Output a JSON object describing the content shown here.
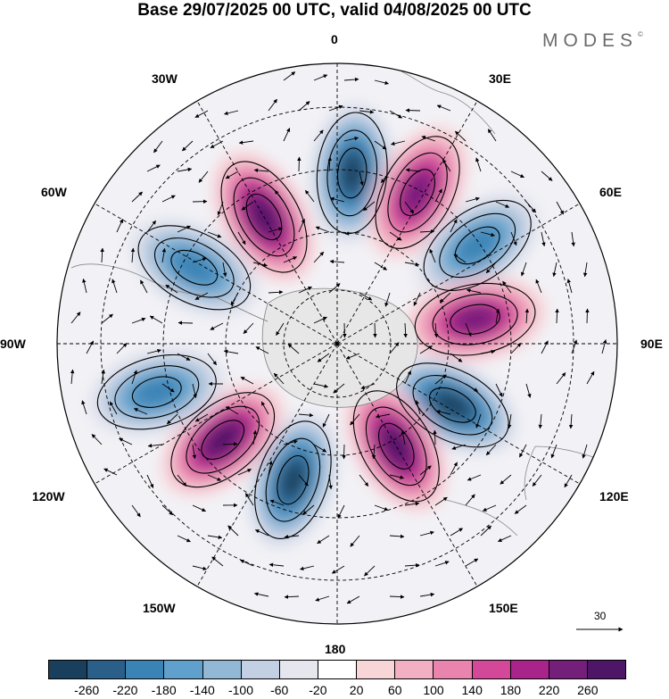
{
  "title": "Base 29/07/2025 00 UTC, valid 04/08/2025 00 UTC",
  "brand": "MODES",
  "brand_mark": "©",
  "longitude_labels": {
    "top": "0",
    "bottom": "180",
    "left": "90W",
    "right": "90E",
    "w30": "30W",
    "e30": "30E",
    "w60": "60W",
    "e60": "60E",
    "w120": "120W",
    "e120": "120E",
    "w150": "150W",
    "e150": "150E"
  },
  "legend": {
    "ticks": [
      "-260",
      "-220",
      "-180",
      "-140",
      "-100",
      "-60",
      "-20",
      "20",
      "60",
      "100",
      "140",
      "180",
      "220",
      "260"
    ],
    "colors": [
      "#1a3f5c",
      "#2a5f8a",
      "#3a83b5",
      "#5fa1cc",
      "#93b8d6",
      "#c3cfe2",
      "#e6e6ef",
      "#ffffff",
      "#f8d5d7",
      "#f2b0c2",
      "#e884ae",
      "#d4489a",
      "#a8248a",
      "#741f7a",
      "#4e1666"
    ]
  },
  "reference_vector": {
    "label": "30"
  },
  "anomalies": [
    {
      "sign": "negative",
      "lon": 5,
      "lat_from_pole": 55,
      "magnitude": 260
    },
    {
      "sign": "positive",
      "lon": -30,
      "lat_from_pole": 47,
      "magnitude": 240
    },
    {
      "sign": "positive",
      "lon": 28,
      "lat_from_pole": 55,
      "magnitude": 180
    },
    {
      "sign": "negative",
      "lon": 55,
      "lat_from_pole": 55,
      "magnitude": 160
    },
    {
      "sign": "negative",
      "lon": -62,
      "lat_from_pole": 52,
      "magnitude": 160
    },
    {
      "sign": "positive",
      "lon": 80,
      "lat_from_pole": 45,
      "magnitude": 200
    },
    {
      "sign": "negative",
      "lon": 118,
      "lat_from_pole": 42,
      "magnitude": 260
    },
    {
      "sign": "positive",
      "lon": 150,
      "lat_from_pole": 38,
      "magnitude": 240
    },
    {
      "sign": "negative",
      "lon": -162,
      "lat_from_pole": 46,
      "magnitude": 260
    },
    {
      "sign": "positive",
      "lon": -130,
      "lat_from_pole": 48,
      "magnitude": 260
    },
    {
      "sign": "negative",
      "lon": -105,
      "lat_from_pole": 60,
      "magnitude": 140
    }
  ]
}
